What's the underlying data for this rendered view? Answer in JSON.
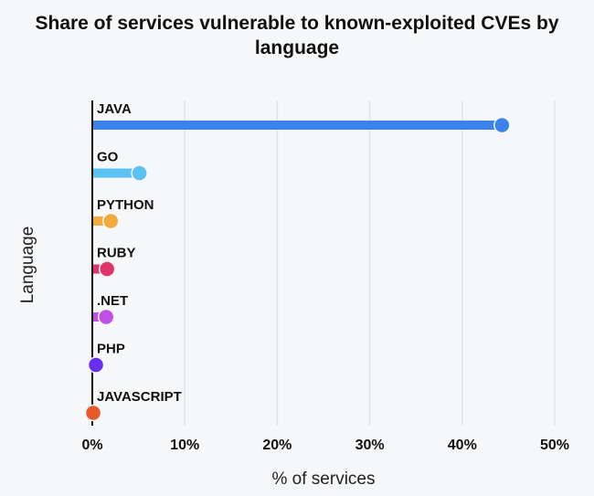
{
  "chart_data": {
    "type": "bar",
    "orientation": "horizontal",
    "style": "lollipop",
    "title": "Share of services vulnerable to known-exploited CVEs by language",
    "xlabel": "% of services",
    "ylabel": "Language",
    "xlim": [
      0,
      50
    ],
    "xticks": [
      "0%",
      "10%",
      "20%",
      "30%",
      "40%",
      "50%"
    ],
    "grid": true,
    "categories": [
      "JAVA",
      "GO",
      "PYTHON",
      "RUBY",
      ".NET",
      "PHP",
      "JAVASCRIPT"
    ],
    "values": [
      44.3,
      5.1,
      2.0,
      1.6,
      1.5,
      0.4,
      0.1
    ],
    "colors": [
      "#3b82ea",
      "#5bc0f2",
      "#f0ab3c",
      "#e0336a",
      "#c24ee8",
      "#6a2ef0",
      "#e85a28"
    ]
  }
}
